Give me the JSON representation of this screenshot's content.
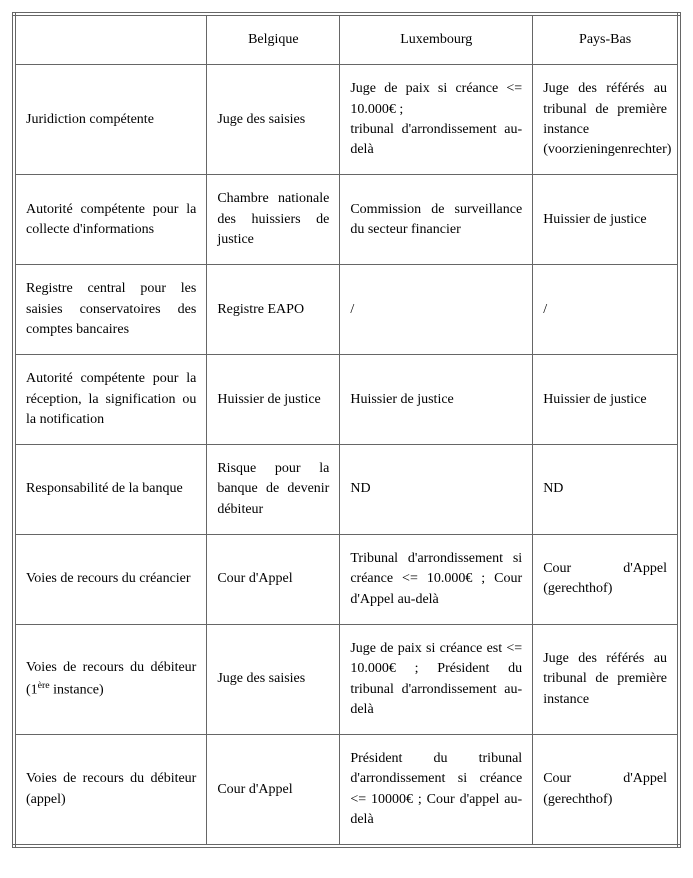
{
  "columns": [
    "",
    "Belgique",
    "Luxembourg",
    "Pays-Bas"
  ],
  "rows": [
    {
      "label": "Juridiction compétente",
      "label_html": "Juridiction compétente",
      "belgique": "Juge des saisies",
      "luxembourg": "Juge de paix si créance <= 10.000€ ;\ntribunal d'arrondissement au-delà",
      "paysbas": "Juge des référés au tribunal de première instance (voorzieningenrechter)"
    },
    {
      "label": "Autorité compétente pour la collecte d'informations",
      "label_html": "Autorité compétente pour la collecte d'informations",
      "belgique": "Chambre nationale des huissiers de justice",
      "luxembourg": "Commission de surveillance du secteur financier",
      "paysbas": "Huissier de justice"
    },
    {
      "label": "Registre central pour les saisies conservatoires des comptes bancaires",
      "label_html": "Registre central pour les saisies conservatoires des comptes bancaires",
      "belgique": "Registre EAPO",
      "luxembourg": "/",
      "paysbas": "/"
    },
    {
      "label": "Autorité compétente pour la réception, la signification ou la notification",
      "label_html": "Autorité compétente pour la réception, la signification ou la notification",
      "belgique": "Huissier de justice",
      "luxembourg": "Huissier de justice",
      "paysbas": "Huissier de justice"
    },
    {
      "label": "Responsabilité de la banque",
      "label_html": "Responsabilité de la banque",
      "belgique": "Risque pour la banque de devenir débiteur",
      "luxembourg": "ND",
      "paysbas": "ND"
    },
    {
      "label": "Voies de recours du créancier",
      "label_html": "Voies de recours du créancier",
      "belgique": "Cour d'Appel",
      "luxembourg": "Tribunal d'arrondissement si créance <= 10.000€ ; Cour d'Appel au-delà",
      "paysbas": "Cour d'Appel (gerechthof)"
    },
    {
      "label": "Voies de recours du débiteur (1ère instance)",
      "label_html": "Voies de recours du débiteur (1<sup>ère</sup> instance)",
      "belgique": "Juge des saisies",
      "luxembourg": "Juge de paix si créance est <= 10.000€ ; Président du tribunal d'arrondissement au-delà",
      "paysbas": "Juge des référés au tribunal de première instance"
    },
    {
      "label": "Voies de recours du débiteur (appel)",
      "label_html": "Voies de recours du débiteur (appel)",
      "belgique": "Cour d'Appel",
      "luxembourg": "Président du tribunal d'arrondissement si créance <= 10000€ ; Cour d'appel au-delà",
      "paysbas": "Cour d'Appel (gerechthof)"
    }
  ]
}
